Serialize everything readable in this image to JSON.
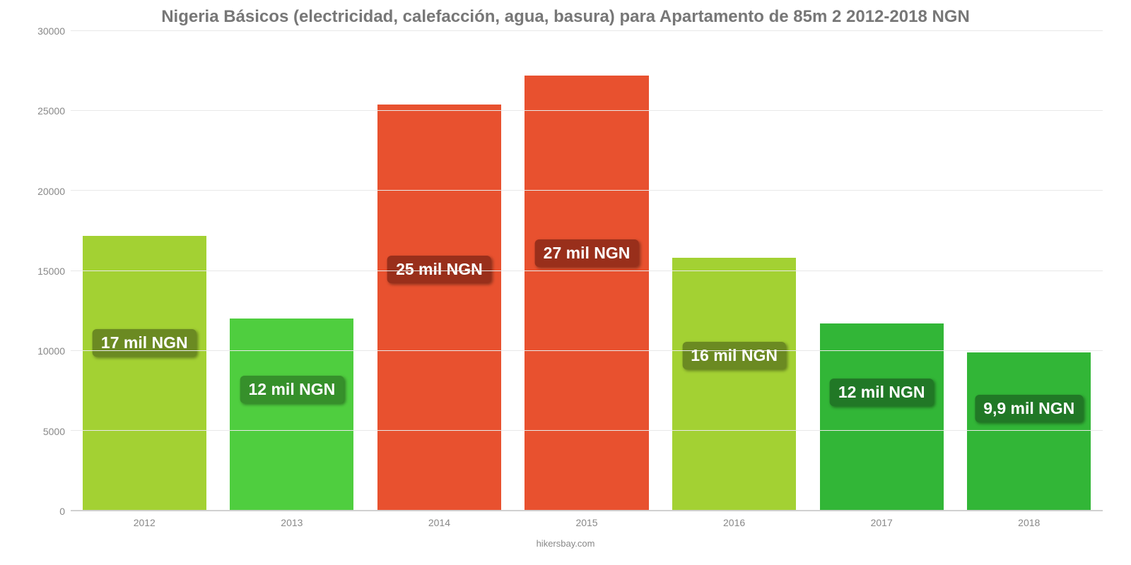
{
  "chart": {
    "type": "bar",
    "title": "Nigeria Básicos (electricidad, calefacción, agua, basura) para Apartamento de 85m 2 2012-2018 NGN",
    "title_fontsize": 24,
    "title_color": "#777777",
    "footer": "hikersbay.com",
    "footer_color": "#888888",
    "background_color": "#ffffff",
    "grid_color": "#e8e8e8",
    "axis_line_color": "#d0d0d0",
    "tick_label_color": "#888888",
    "tick_fontsize": 14,
    "ylim": [
      0,
      30000
    ],
    "ytick_step": 5000,
    "yticks": [
      "0",
      "5000",
      "10000",
      "15000",
      "20000",
      "25000",
      "30000"
    ],
    "categories": [
      "2012",
      "2013",
      "2014",
      "2015",
      "2016",
      "2017",
      "2018"
    ],
    "values": [
      17200,
      12000,
      25400,
      27200,
      15800,
      11700,
      9900
    ],
    "bar_colors": [
      "#a3d133",
      "#4fce3f",
      "#e8512f",
      "#e8512f",
      "#a3d133",
      "#32b637",
      "#32b637"
    ],
    "bar_width_pct": 84,
    "bar_labels": [
      "17 mil NGN",
      "12 mil NGN",
      "25 mil NGN",
      "27 mil NGN",
      "16 mil NGN",
      "12 mil NGN",
      "9,9 mil NGN"
    ],
    "label_bg_colors": [
      "#6b8a22",
      "#36902b",
      "#992f1b",
      "#992f1b",
      "#6b8a22",
      "#217826",
      "#217826"
    ],
    "label_fontsize": 23,
    "label_text_color": "#ffffff"
  }
}
